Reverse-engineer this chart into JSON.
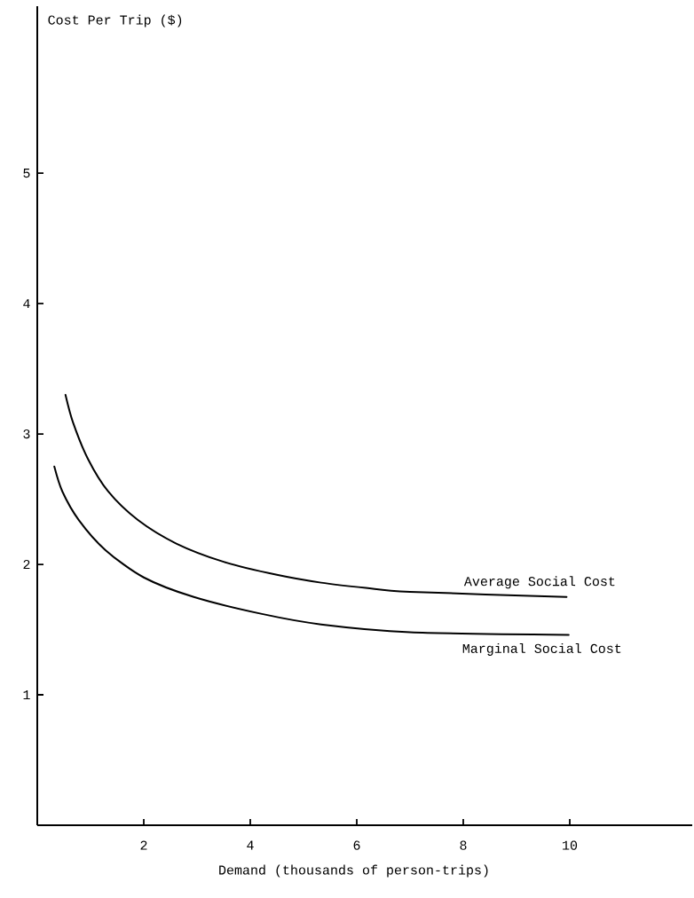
{
  "chart_data": {
    "type": "line",
    "xlabel": "Demand (thousands of person-trips)",
    "ylabel": "Cost Per Trip ($)",
    "xlim": [
      0,
      12.3
    ],
    "ylim": [
      0,
      6.28
    ],
    "xticks": [
      2,
      4,
      6,
      8,
      10
    ],
    "yticks": [
      1,
      2,
      3,
      4,
      5
    ],
    "series": [
      {
        "name": "Average Social Cost",
        "color": "#000000",
        "x": [
          0.53,
          0.67,
          0.95,
          1.33,
          1.89,
          2.61,
          3.5,
          4.5,
          5.33,
          6.17,
          7.0,
          9.94
        ],
        "values": [
          3.3,
          3.09,
          2.81,
          2.56,
          2.34,
          2.16,
          2.02,
          1.92,
          1.86,
          1.82,
          1.79,
          1.75
        ]
      },
      {
        "name": "Marginal Social Cost",
        "color": "#000000",
        "x": [
          0.32,
          0.47,
          0.78,
          1.28,
          2.0,
          2.94,
          4.22,
          5.33,
          7.0,
          9.98
        ],
        "values": [
          2.75,
          2.56,
          2.34,
          2.11,
          1.9,
          1.75,
          1.62,
          1.54,
          1.48,
          1.46
        ]
      }
    ],
    "legend": false,
    "marker": "none",
    "line_style": "solid"
  }
}
